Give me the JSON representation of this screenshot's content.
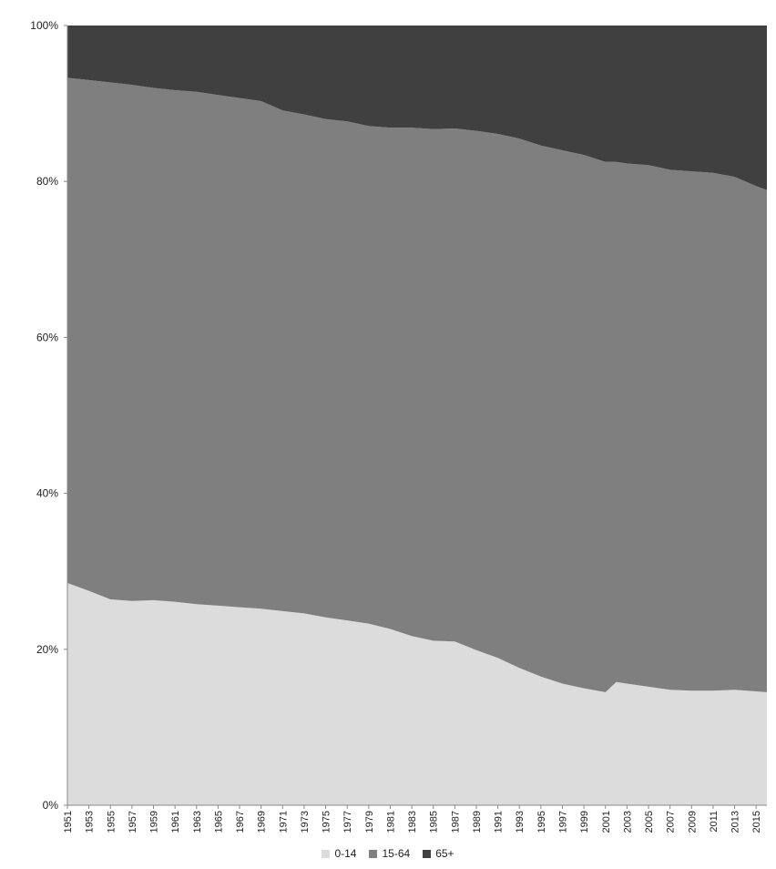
{
  "chart_data": {
    "type": "area",
    "stacked_percent": true,
    "x": [
      1951,
      1953,
      1955,
      1957,
      1959,
      1961,
      1963,
      1965,
      1967,
      1969,
      1971,
      1973,
      1975,
      1977,
      1979,
      1981,
      1983,
      1985,
      1987,
      1989,
      1991,
      1993,
      1995,
      1997,
      1999,
      2001,
      2002,
      2003,
      2005,
      2007,
      2009,
      2011,
      2013,
      2015,
      2016
    ],
    "series": [
      {
        "name": "0-14",
        "color": "#dcdcdc",
        "values": [
          28.5,
          27.5,
          26.4,
          26.2,
          26.3,
          26.1,
          25.8,
          25.6,
          25.4,
          25.2,
          24.9,
          24.6,
          24.1,
          23.7,
          23.3,
          22.6,
          21.7,
          21.1,
          21.0,
          19.9,
          18.9,
          17.6,
          16.5,
          15.6,
          15.0,
          14.5,
          15.8,
          15.6,
          15.2,
          14.8,
          14.7,
          14.7,
          14.8,
          14.6,
          14.5
        ]
      },
      {
        "name": "15-64",
        "color": "#7f7f7f",
        "values": [
          64.8,
          65.5,
          66.3,
          66.2,
          65.7,
          65.6,
          65.7,
          65.5,
          65.3,
          65.1,
          64.2,
          64.0,
          63.9,
          64.0,
          63.8,
          64.3,
          65.2,
          65.6,
          65.8,
          66.6,
          67.2,
          67.9,
          68.1,
          68.4,
          68.4,
          68.0,
          66.7,
          66.7,
          66.9,
          66.7,
          66.6,
          66.4,
          65.8,
          64.8,
          64.4
        ]
      },
      {
        "name": "65+",
        "color": "#404040",
        "values": [
          6.7,
          7.0,
          7.3,
          7.6,
          8.0,
          8.3,
          8.5,
          8.9,
          9.3,
          9.7,
          10.9,
          11.4,
          12.0,
          12.3,
          12.9,
          13.1,
          13.1,
          13.3,
          13.2,
          13.5,
          13.9,
          14.5,
          15.4,
          16.0,
          16.6,
          17.5,
          17.5,
          17.7,
          17.9,
          18.5,
          18.7,
          18.9,
          19.4,
          20.6,
          21.1
        ]
      }
    ],
    "y_ticks": [
      "0%",
      "20%",
      "40%",
      "60%",
      "80%",
      "100%"
    ],
    "x_tick_labels": [
      "1951",
      "1953",
      "1955",
      "1957",
      "1959",
      "1961",
      "1963",
      "1965",
      "1967",
      "1969",
      "1971",
      "1973",
      "1975",
      "1977",
      "1979",
      "1981",
      "1983",
      "1985",
      "1987",
      "1989",
      "1991",
      "1993",
      "1995",
      "1997",
      "1999",
      "2001",
      "2003",
      "2005",
      "2007",
      "2009",
      "2011",
      "2013",
      "2015"
    ],
    "ylim": [
      0,
      100
    ],
    "xlim": [
      1951,
      2016
    ],
    "grid": false,
    "legend_position": "bottom-center"
  }
}
